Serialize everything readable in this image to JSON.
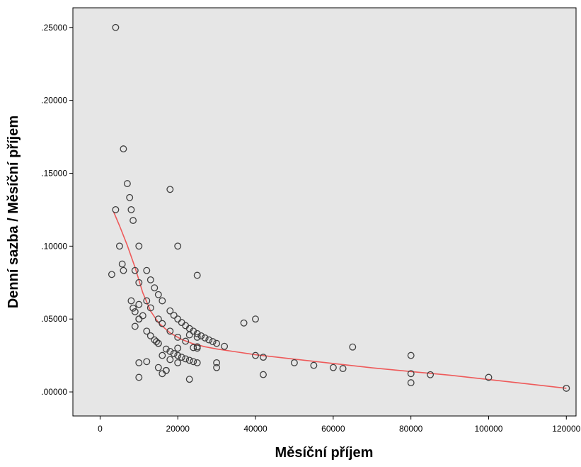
{
  "chart_data": {
    "type": "scatter",
    "title": "",
    "xlabel": "Měsíční příjem",
    "ylabel": "Denní sazba / Měsíční příjem",
    "xlim": [
      -7000,
      122500
    ],
    "ylim": [
      -0.0165,
      0.2635
    ],
    "x_ticks": [
      0,
      20000,
      40000,
      60000,
      80000,
      100000,
      120000
    ],
    "y_ticks": [
      0,
      0.05,
      0.1,
      0.15,
      0.2,
      0.25
    ],
    "x_tick_labels": [
      "0",
      "20000",
      "40000",
      "60000",
      "80000",
      "100000",
      "120000"
    ],
    "y_tick_labels": [
      ".00000",
      ".05000",
      ".10000",
      ".15000",
      ".20000",
      ".25000"
    ],
    "grid": false,
    "colors": {
      "plot_background": "#e6e6e6",
      "marker_edge": "#404040",
      "fit_line": "#ee5a5a"
    },
    "series": [
      {
        "marker": "open-circle",
        "x": [
          4000,
          6000,
          7000,
          7600,
          8000,
          8500,
          4000,
          5000,
          6000,
          5700,
          3000,
          9000,
          10000,
          10000,
          12000,
          12000,
          13000,
          14000,
          15000,
          16000,
          16000,
          13000,
          15000,
          18000,
          18000,
          19000,
          20000,
          21000,
          22000,
          22000,
          23000,
          23000,
          24000,
          24000,
          25000,
          25000,
          26000,
          27000,
          28000,
          29000,
          30000,
          32000,
          20000,
          18000,
          25000,
          37000,
          40000,
          40000,
          42000,
          50000,
          55000,
          60000,
          62500,
          65000,
          80000,
          80000,
          80000,
          85000,
          100000,
          120000,
          8000,
          8500,
          9000,
          9000,
          10000,
          10000,
          10000,
          11000,
          12000,
          12000,
          13000,
          14000,
          14500,
          15000,
          15000,
          16000,
          17000,
          17000,
          18000,
          19000,
          20000,
          20000,
          20000,
          21000,
          22000,
          23000,
          24000,
          25000,
          25000,
          30000,
          30000,
          25000,
          10000,
          10000,
          15000,
          16000,
          17000,
          18000,
          20000,
          23000,
          42000
        ],
        "y": [
          0.25,
          0.1667,
          0.1429,
          0.1333,
          0.125,
          0.1176,
          0.125,
          0.1,
          0.0833,
          0.0877,
          0.0806,
          0.0833,
          0.1,
          0.075,
          0.0833,
          0.0625,
          0.0769,
          0.0714,
          0.0667,
          0.0625,
          0.0469,
          0.0577,
          0.05,
          0.0556,
          0.1389,
          0.0526,
          0.05,
          0.0476,
          0.0455,
          0.0348,
          0.0435,
          0.0391,
          0.0417,
          0.0304,
          0.04,
          0.03,
          0.0385,
          0.037,
          0.0357,
          0.0345,
          0.0333,
          0.0313,
          0.1,
          0.0417,
          0.08,
          0.0473,
          0.05,
          0.025,
          0.0238,
          0.02,
          0.0182,
          0.0167,
          0.016,
          0.0308,
          0.025,
          0.0125,
          0.0063,
          0.0118,
          0.01,
          0.0025,
          0.0625,
          0.0575,
          0.055,
          0.045,
          0.06,
          0.05,
          0.02,
          0.0523,
          0.0417,
          0.0208,
          0.0385,
          0.0357,
          0.0345,
          0.0333,
          0.0167,
          0.025,
          0.0294,
          0.0147,
          0.0278,
          0.0263,
          0.025,
          0.0375,
          0.02,
          0.0238,
          0.0227,
          0.0217,
          0.0208,
          0.02,
          0.0375,
          0.02,
          0.0167,
          0.031,
          0.01,
          0.05,
          0.0333,
          0.0125,
          0.0147,
          0.0222,
          0.03,
          0.0087,
          0.0119
        ]
      }
    ],
    "fit_line": {
      "x": [
        3500,
        5000,
        7000,
        9000,
        11000,
        13000,
        15000,
        18000,
        21000,
        24000,
        27000,
        30000,
        35000,
        40000,
        50000,
        60000,
        70000,
        80000,
        90000,
        100000,
        110000,
        120000
      ],
      "y": [
        0.1235,
        0.114,
        0.1005,
        0.0855,
        0.068,
        0.0555,
        0.0475,
        0.0405,
        0.036,
        0.033,
        0.031,
        0.0295,
        0.0275,
        0.0255,
        0.0225,
        0.0195,
        0.0165,
        0.014,
        0.0115,
        0.0085,
        0.0055,
        0.0025
      ]
    }
  }
}
